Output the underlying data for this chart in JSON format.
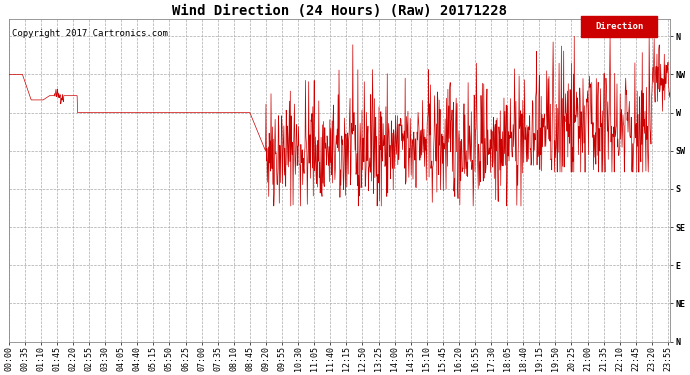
{
  "title": "Wind Direction (24 Hours) (Raw) 20171228",
  "copyright_text": "Copyright 2017 Cartronics.com",
  "legend_label": "Direction",
  "legend_bg_color": "#cc0000",
  "legend_text_color": "#ffffff",
  "line_color": "#cc0000",
  "background_color": "#ffffff",
  "grid_color": "#aaaaaa",
  "ytick_labels": [
    "N",
    "NW",
    "W",
    "SW",
    "S",
    "SE",
    "E",
    "NE",
    "N"
  ],
  "ytick_values": [
    360,
    315,
    270,
    225,
    180,
    135,
    90,
    45,
    0
  ],
  "ylim": [
    0,
    380
  ],
  "title_fontsize": 10,
  "axis_fontsize": 6,
  "copyright_fontsize": 6.5,
  "seed": 42,
  "num_points": 1440,
  "xtick_interval_min": 35,
  "total_minutes": 1440
}
